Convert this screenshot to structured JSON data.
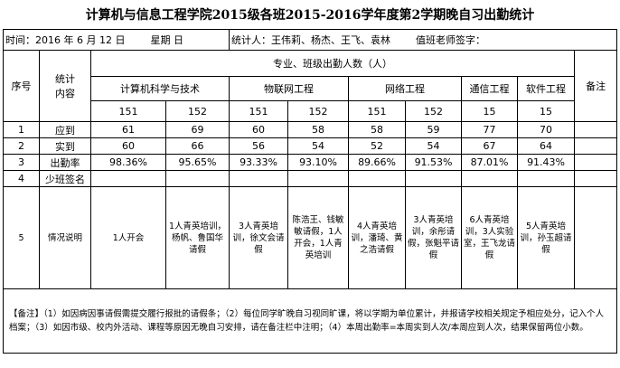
{
  "title": "计算机与信息工程学院2015级各班2015-2016学年度第2学期晚自习出勤统计",
  "info": {
    "date": "时间：2016 年 6 月 12 日",
    "weekday": "星期 日",
    "stats_by": "统计人：王伟莉、杨杰、王飞、袁林",
    "teacher_sign": "值班老师签字："
  },
  "header": {
    "index": "序号",
    "item": "统计内容",
    "group": "专业、班级出勤人数（人）",
    "remark": "备注"
  },
  "majors": [
    {
      "name": "计算机科学与技术",
      "classes": [
        "151",
        "152"
      ]
    },
    {
      "name": "物联网工程",
      "classes": [
        "151",
        "152"
      ]
    },
    {
      "name": "网络工程",
      "classes": [
        "151",
        "152"
      ]
    },
    {
      "name": "通信工程",
      "classes": [
        "15"
      ]
    },
    {
      "name": "软件工程",
      "classes": [
        "15"
      ]
    }
  ],
  "rows": [
    {
      "index": "1",
      "label": "应到",
      "values": [
        "61",
        "69",
        "60",
        "58",
        "58",
        "59",
        "77",
        "70"
      ]
    },
    {
      "index": "2",
      "label": "实到",
      "values": [
        "60",
        "66",
        "56",
        "54",
        "52",
        "54",
        "67",
        "64"
      ]
    },
    {
      "index": "3",
      "label": "出勤率",
      "values": [
        "98.36%",
        "95.65%",
        "93.33%",
        "93.10%",
        "89.66%",
        "91.53%",
        "87.01%",
        "91.43%"
      ]
    },
    {
      "index": "4",
      "label": "少班签名"
    },
    {
      "index": "5",
      "label": "情况说明",
      "values": [
        "1人开会",
        "1人青英培训，杨帆、鲁国华请假",
        "3人青英培训，徐文会请假",
        "陈浩王、钱敏敏请假，1人开会，1人青英培训",
        "4人青英培训，潘琦、黄之浩请假",
        "3人青英培训，余彤请假，张魁平请假",
        "6人青英培训，3人实验室，王飞龙请假",
        "5人青英培训，孙玉超请假"
      ]
    }
  ],
  "note": "【备注】（1）如因病因事请假需提交履行报批的请假条；（2）每位同学旷晚自习视同旷课，将以学期为单位累计，并报请学校相关规定予相应处分，记入个人档案；（3）如因市级、校内外活动、课程等原因无晚自习安排，请在备注栏中注明；（4）本周出勤率=本周实到人次/本周应到人次，结果保留两位小数。"
}
